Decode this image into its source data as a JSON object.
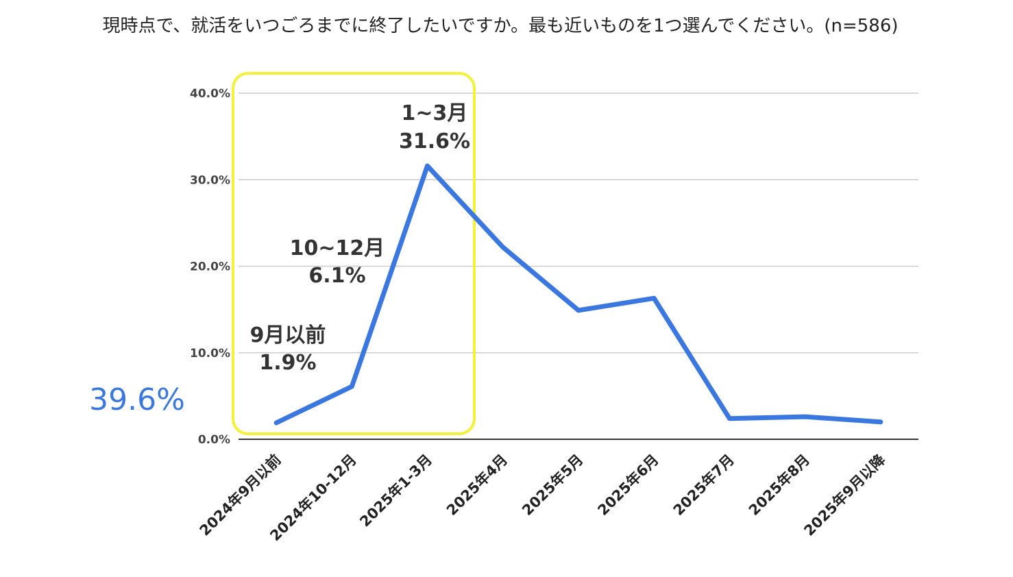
{
  "chart_data": {
    "type": "line",
    "title": "現時点で、就活をいつごろまでに終了したいですか。最も近いものを1つ選んでください。(n=586)",
    "categories": [
      "2024年9月以前",
      "2024年10-12月",
      "2025年1-3月",
      "2025年4月",
      "2025年5月",
      "2025年6月",
      "2025年7月",
      "2025年8月",
      "2025年9月以降"
    ],
    "series": [
      {
        "values": [
          1.9,
          6.1,
          31.6,
          22.2,
          14.9,
          16.3,
          2.4,
          2.6,
          2.0
        ]
      }
    ],
    "ylim": [
      0,
      40
    ],
    "yticks": [
      "0.0%",
      "10.0%",
      "20.0%",
      "30.0%",
      "40.0%"
    ],
    "grid": true,
    "line_color": "#3a78e0",
    "highlight_color": "#f2f23a",
    "annotations": [
      {
        "index": 0,
        "label": "9月以前",
        "value": "1.9%"
      },
      {
        "index": 1,
        "label": "10~12月",
        "value": "6.1%"
      },
      {
        "index": 2,
        "label": "1~3月",
        "value": "31.6%"
      }
    ],
    "summary_value": "39.6%"
  }
}
